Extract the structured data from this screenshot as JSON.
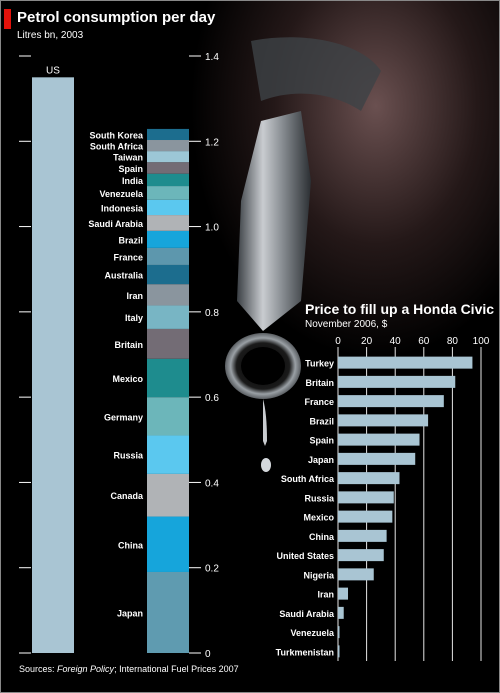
{
  "chart_data": [
    {
      "type": "bar",
      "title": "Petrol consumption per day",
      "subtitle": "Litres bn, 2003",
      "ylim": [
        0,
        1.4
      ],
      "yticks": [
        "0",
        "0.2",
        "0.4",
        "0.6",
        "0.8",
        "1.0",
        "1.2",
        "1.4"
      ],
      "categories": [
        "US"
      ],
      "values": [
        1.35
      ],
      "stacked_bar": {
        "segments": [
          {
            "name": "Japan",
            "value": 0.19,
            "color": "#5f9bb0"
          },
          {
            "name": "China",
            "value": 0.13,
            "color": "#16a5db"
          },
          {
            "name": "Canada",
            "value": 0.1,
            "color": "#b0b3b6"
          },
          {
            "name": "Russia",
            "value": 0.09,
            "color": "#5bc8ef"
          },
          {
            "name": "Germany",
            "value": 0.09,
            "color": "#6cb6ba"
          },
          {
            "name": "Mexico",
            "value": 0.09,
            "color": "#1e8c8e"
          },
          {
            "name": "Britain",
            "value": 0.07,
            "color": "#736c75"
          },
          {
            "name": "Italy",
            "value": 0.055,
            "color": "#78b5c4"
          },
          {
            "name": "Iran",
            "value": 0.05,
            "color": "#8a959e"
          },
          {
            "name": "Australia",
            "value": 0.045,
            "color": "#1c6d8e"
          },
          {
            "name": "France",
            "value": 0.04,
            "color": "#5d97ad"
          },
          {
            "name": "Brazil",
            "value": 0.04,
            "color": "#16a5db"
          },
          {
            "name": "Saudi Arabia",
            "value": 0.037,
            "color": "#b0b3b6"
          },
          {
            "name": "Indonesia",
            "value": 0.036,
            "color": "#5bc8ef"
          },
          {
            "name": "Venezuela",
            "value": 0.032,
            "color": "#6cb6ba"
          },
          {
            "name": "India",
            "value": 0.029,
            "color": "#1e8c8e"
          },
          {
            "name": "Spain",
            "value": 0.027,
            "color": "#736c75"
          },
          {
            "name": "Taiwan",
            "value": 0.026,
            "color": "#9cc7d6"
          },
          {
            "name": "South Africa",
            "value": 0.026,
            "color": "#8a959e"
          },
          {
            "name": "South Korea",
            "value": 0.026,
            "color": "#1c6d8e"
          }
        ]
      },
      "us_color": "#a9c5d3"
    },
    {
      "type": "bar",
      "orientation": "horizontal",
      "title": "Price to fill up a Honda Civic",
      "subtitle": "November 2006, $",
      "xlim": [
        0,
        100
      ],
      "xticks": [
        "0",
        "20",
        "40",
        "60",
        "80",
        "100"
      ],
      "categories": [
        "Turkey",
        "Britain",
        "France",
        "Brazil",
        "Spain",
        "Japan",
        "South Africa",
        "Russia",
        "Mexico",
        "China",
        "United States",
        "Nigeria",
        "Iran",
        "Saudi Arabia",
        "Venezuela",
        "Turkmenistan"
      ],
      "values": [
        94,
        82,
        74,
        63,
        57,
        54,
        43,
        39,
        38,
        34,
        32,
        25,
        7,
        4,
        1,
        1
      ],
      "bar_color": "#a9c5d3"
    }
  ],
  "sources": {
    "prefix": "Sources: ",
    "italic": "Foreign Policy",
    "rest": "; International Fuel Prices 2007"
  }
}
